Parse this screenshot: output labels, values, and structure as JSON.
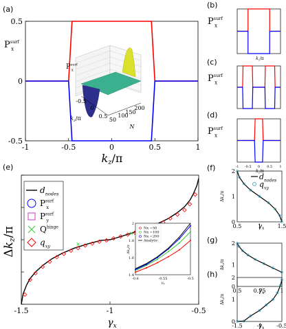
{
  "chart_data": [
    {
      "id": "a",
      "panel_label": "(a)",
      "type": "line",
      "ylabel_main": "P",
      "ylabel_sup": "surf",
      "ylabel_sub": "x",
      "xlabel": "kz/π",
      "xlim": [
        -1,
        1
      ],
      "ylim": [
        -0.5,
        0.5
      ],
      "xticks": [
        "-1",
        "-0.5",
        "0",
        "0.5",
        "1"
      ],
      "yticks": [
        "-0.5",
        "0",
        "0.5"
      ],
      "colors": {
        "upper": "#ff0000",
        "lower": "#0000ff"
      },
      "series": [
        {
          "x": [
            -1,
            -0.5,
            -0.46,
            0.46,
            0.5,
            1
          ],
          "y": [
            0,
            0,
            0.5,
            0.5,
            0,
            0
          ]
        },
        {
          "x": [
            -1,
            -0.5,
            -0.46,
            0.46,
            0.5,
            1
          ],
          "y": [
            0,
            0,
            -0.5,
            -0.5,
            0,
            0
          ]
        }
      ],
      "inset": {
        "type": "surface",
        "zlabel_main": "P",
        "zlabel_sup": "surf",
        "zlabel_sub": "x",
        "xlabel": "kz/π",
        "ylabel": "N",
        "xticks": [
          "-0.5",
          "0",
          "0.5"
        ],
        "yticks": [
          "50",
          "100",
          "150",
          "200"
        ]
      }
    },
    {
      "id": "b",
      "panel_label": "(b)",
      "type": "line",
      "ylabel_main": "P",
      "ylabel_sup": "surf",
      "ylabel_sub": "x",
      "xlabel": "kz/π",
      "series": [
        {
          "x": [
            -1,
            -0.5,
            -0.5,
            0.5,
            0.5,
            1
          ],
          "y": [
            0,
            0,
            0.5,
            0.5,
            0,
            0
          ]
        },
        {
          "x": [
            -1,
            -0.5,
            -0.5,
            0.5,
            0.5,
            1
          ],
          "y": [
            0,
            0,
            -0.5,
            -0.5,
            0,
            0
          ]
        }
      ]
    },
    {
      "id": "c",
      "panel_label": "(c)",
      "type": "line",
      "ylabel_main": "P",
      "ylabel_sup": "surf",
      "ylabel_sub": "x",
      "series": [
        {
          "x": [
            -1,
            -0.75,
            -0.73,
            -0.3,
            -0.28,
            0.28,
            0.3,
            0.73,
            0.75,
            1
          ],
          "y": [
            0,
            0,
            0.5,
            0.5,
            0,
            0,
            0.5,
            0.5,
            0,
            0
          ]
        },
        {
          "x": [
            -1,
            -0.75,
            -0.73,
            -0.3,
            -0.28,
            0.28,
            0.3,
            0.73,
            0.75,
            1
          ],
          "y": [
            0,
            0,
            -0.5,
            -0.5,
            0,
            0,
            -0.5,
            -0.5,
            0,
            0
          ]
        }
      ]
    },
    {
      "id": "d",
      "panel_label": "(d)",
      "type": "line",
      "ylabel_main": "P",
      "ylabel_sup": "surf",
      "ylabel_sub": "x",
      "xlabel": "kz/π",
      "xticks": [
        "-1",
        "-0.5",
        "0",
        "0.5",
        "1"
      ],
      "series": [
        {
          "x": [
            -1,
            -0.2,
            -0.17,
            0.17,
            0.2,
            1
          ],
          "y": [
            0,
            0,
            0.5,
            0.5,
            0,
            0
          ]
        },
        {
          "x": [
            -1,
            -0.2,
            -0.17,
            0.17,
            0.2,
            1
          ],
          "y": [
            0,
            0,
            -0.5,
            -0.5,
            0,
            0
          ]
        }
      ]
    },
    {
      "id": "e",
      "panel_label": "(e)",
      "type": "line",
      "xlabel": "γx",
      "ylabel": "Δkz/π",
      "xlim": [
        -1.5,
        -0.5
      ],
      "ylim": [
        0,
        2
      ],
      "xticks": [
        "-1.5",
        "-1",
        "-0.5"
      ],
      "yticks": [
        "0",
        "0.5",
        "1",
        "1.5",
        "2"
      ],
      "legend": [
        "d_nodes",
        "P_y^surf... ",
        "",
        "",
        ""
      ],
      "legend_entries": [
        {
          "main": "d",
          "sub": "nodes",
          "sup": "",
          "marker": "line",
          "color": "#000000"
        },
        {
          "main": "P",
          "sub": "x",
          "sup": "surf",
          "marker": "circle",
          "color": "#0000ff"
        },
        {
          "main": "P",
          "sub": "y",
          "sup": "surf",
          "marker": "square",
          "color": "#cc33cc"
        },
        {
          "main": "Q",
          "sub": "",
          "sup": "hinge",
          "marker": "cross",
          "color": "#33cc33"
        },
        {
          "main": "q",
          "sub": "xy",
          "sup": "",
          "marker": "diamond",
          "color": "#ff0000"
        }
      ],
      "series": [
        {
          "name": "d_nodes",
          "x": [
            -1.5,
            -1.49,
            -1.47,
            -1.45,
            -1.42,
            -1.38,
            -1.33,
            -1.27,
            -1.2,
            -1.12,
            -1.05,
            -1.0,
            -0.95,
            -0.88,
            -0.8,
            -0.73,
            -0.67,
            -0.62,
            -0.58,
            -0.55,
            -0.53,
            -0.51,
            -0.5
          ],
          "y": [
            0,
            0.16,
            0.3,
            0.4,
            0.5,
            0.6,
            0.7,
            0.79,
            0.87,
            0.94,
            0.99,
            1.0,
            1.04,
            1.1,
            1.17,
            1.25,
            1.33,
            1.42,
            1.51,
            1.61,
            1.71,
            1.84,
            1.95
          ]
        },
        {
          "name": "q_xy",
          "x": [
            -1.48,
            -1.45,
            -1.42,
            -1.38,
            -1.34,
            -1.3,
            -1.26,
            -1.22,
            -1.18,
            -1.14,
            -1.1,
            -1.06,
            -1.02,
            -0.98,
            -0.94,
            -0.9,
            -0.86,
            -0.82,
            -0.78,
            -0.74,
            -0.7,
            -0.66,
            -0.62,
            -0.58,
            -0.55,
            -0.52
          ],
          "y": [
            0.15,
            0.38,
            0.48,
            0.58,
            0.66,
            0.73,
            0.78,
            0.83,
            0.87,
            0.91,
            0.94,
            0.97,
            0.99,
            1.02,
            1.05,
            1.08,
            1.11,
            1.14,
            1.18,
            1.23,
            1.27,
            1.33,
            1.39,
            1.46,
            1.55,
            1.7
          ]
        }
      ],
      "inset": {
        "type": "line",
        "xlabel": "γx",
        "ylabel": "Δkz/π",
        "xlim": [
          -0.6,
          -0.5
        ],
        "ylim": [
          1.4,
          2
        ],
        "xticks": [
          "-0.6",
          "-0.55",
          "-0.5"
        ],
        "yticks": [
          "1.4",
          "1.6",
          "1.8",
          "2"
        ],
        "legend_entries": [
          {
            "label": "Nx =50",
            "color": "#ff0000"
          },
          {
            "label": "Nx =100",
            "color": "#33cc33"
          },
          {
            "label": "Nx =200",
            "color": "#0000ff"
          },
          {
            "label": "Analytic",
            "color": "#000000"
          }
        ],
        "series": [
          {
            "name": "Nx =50",
            "x": [
              -0.6,
              -0.58,
              -0.56,
              -0.54,
              -0.52,
              -0.5
            ],
            "y": [
              1.43,
              1.48,
              1.54,
              1.61,
              1.69,
              1.8
            ]
          },
          {
            "name": "Nx =100",
            "x": [
              -0.6,
              -0.58,
              -0.56,
              -0.54,
              -0.52,
              -0.5
            ],
            "y": [
              1.45,
              1.51,
              1.58,
              1.67,
              1.77,
              1.9
            ]
          },
          {
            "name": "Nx =200",
            "x": [
              -0.6,
              -0.58,
              -0.56,
              -0.54,
              -0.52,
              -0.5
            ],
            "y": [
              1.46,
              1.52,
              1.6,
              1.7,
              1.82,
              1.97
            ]
          },
          {
            "name": "Analytic",
            "x": [
              -0.6,
              -0.58,
              -0.56,
              -0.54,
              -0.52,
              -0.5
            ],
            "y": [
              1.47,
              1.53,
              1.61,
              1.71,
              1.84,
              2.0
            ]
          }
        ]
      }
    },
    {
      "id": "f",
      "panel_label": "(f)",
      "type": "line",
      "ylabel": "Δkz/π",
      "xlabel": "γx",
      "xlim": [
        0.5,
        1.5
      ],
      "ylim": [
        0,
        2
      ],
      "xticks": [
        "0.5",
        "1",
        "1.5"
      ],
      "yticks": [
        "0",
        "1",
        "2"
      ],
      "legend_entries": [
        {
          "main": "d",
          "sub": "nodes",
          "marker": "line",
          "color": "#000000"
        },
        {
          "main": "q",
          "sub": "xy",
          "marker": "circle",
          "color": "#29a3c2"
        }
      ],
      "series": [
        {
          "name": "d_nodes",
          "x": [
            0.5,
            0.55,
            0.65,
            0.8,
            1.0,
            1.2,
            1.35,
            1.45,
            1.5
          ],
          "y": [
            2,
            1.75,
            1.5,
            1.25,
            1.0,
            0.75,
            0.5,
            0.25,
            0
          ]
        }
      ]
    },
    {
      "id": "g",
      "panel_label": "(g)",
      "type": "line",
      "ylabel": "Δkz/π",
      "xlabel": "γx",
      "xlim": [
        0.5,
        1
      ],
      "ylim": [
        0,
        2
      ],
      "xticks": [
        "0.5",
        "0.75",
        "1"
      ],
      "yticks": [
        "0",
        "1",
        "2"
      ],
      "series": [
        {
          "name": "d_nodes",
          "x": [
            0.5,
            0.52,
            0.56,
            0.62,
            0.7,
            0.8,
            0.9,
            1.0
          ],
          "y": [
            2,
            1.85,
            1.65,
            1.45,
            1.25,
            1.05,
            0.85,
            0.65
          ]
        }
      ]
    },
    {
      "id": "h",
      "panel_label": "(h)",
      "type": "line",
      "ylabel": "Δkz/π",
      "xlabel": "γx",
      "xlim": [
        -1.5,
        -0.5
      ],
      "ylim": [
        0,
        2
      ],
      "xticks": [
        "-1.5",
        "-1",
        "-0.5"
      ],
      "yticks": [
        "0",
        "1",
        "2"
      ],
      "series": [
        {
          "name": "d_nodes",
          "x": [
            -1.5,
            -1.35,
            -1.2,
            -1.0,
            -0.85,
            -0.7,
            -0.6,
            -0.53,
            -0.5
          ],
          "y": [
            0,
            0.02,
            0.25,
            0.5,
            0.75,
            1.0,
            1.3,
            1.65,
            1.9
          ]
        }
      ]
    }
  ]
}
